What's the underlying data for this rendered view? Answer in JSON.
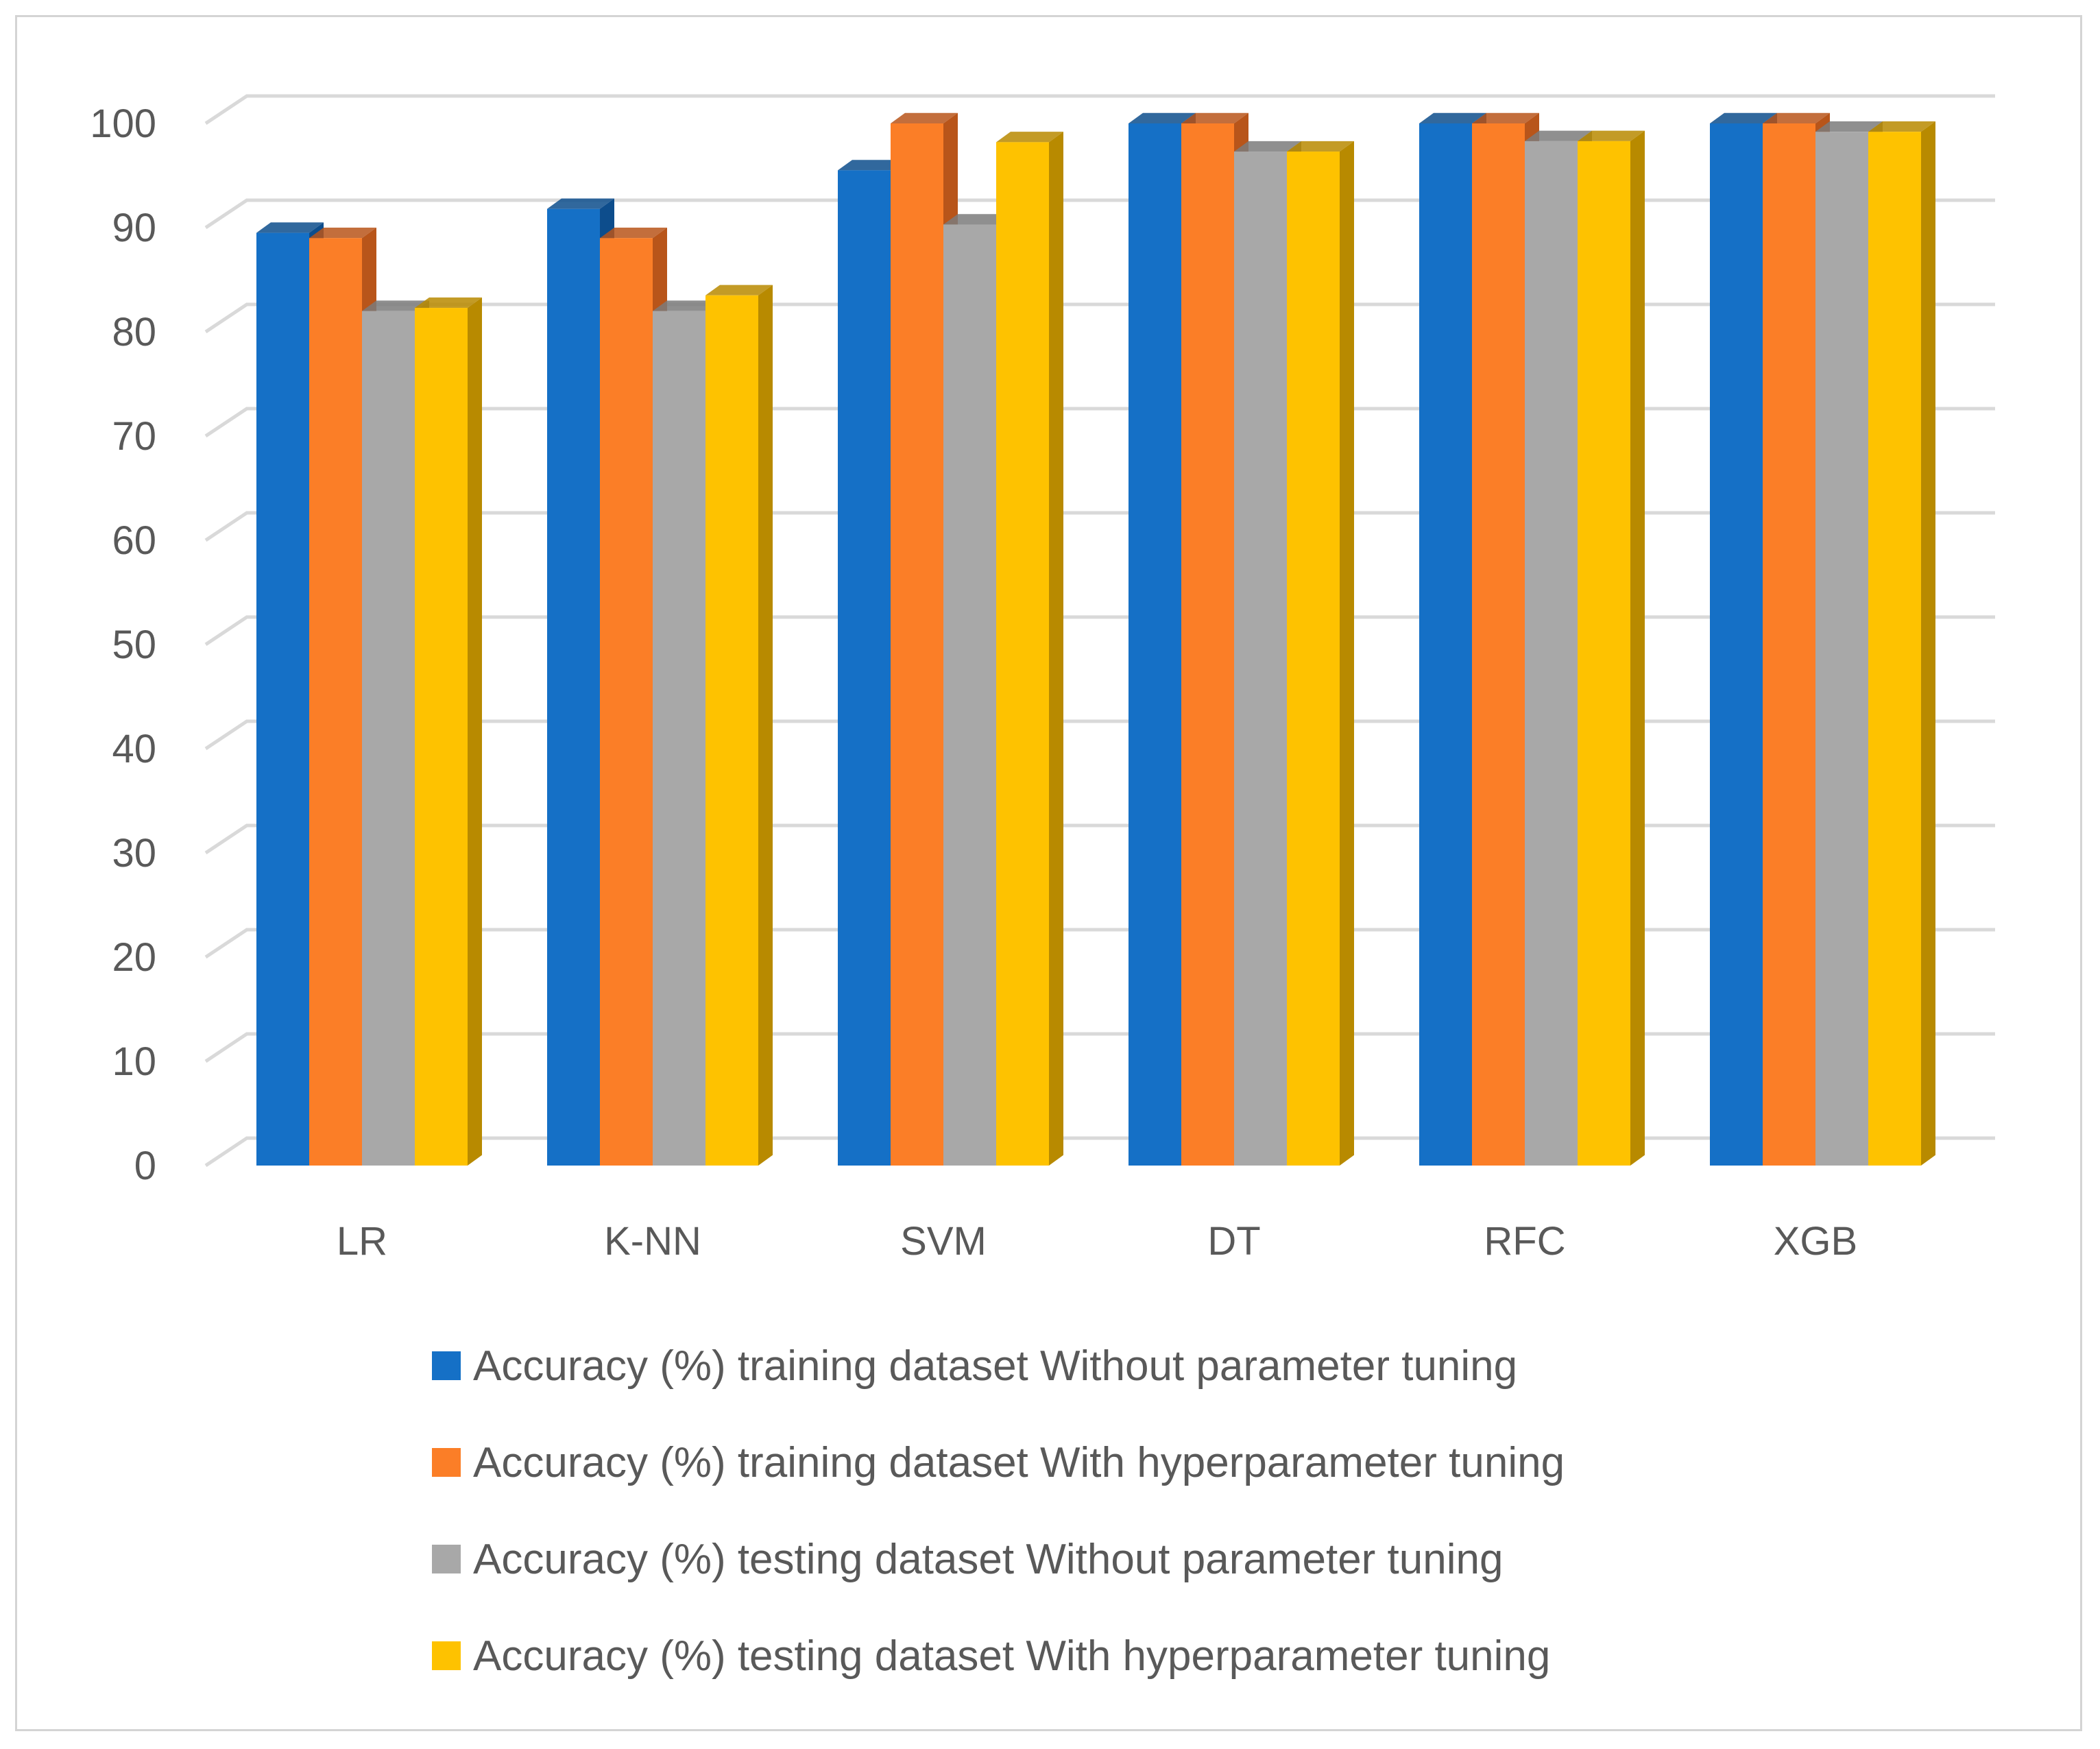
{
  "chart_data": {
    "type": "bar",
    "title": "",
    "xlabel": "",
    "ylabel": "",
    "ylim": [
      0,
      100
    ],
    "yticks": [
      0,
      10,
      20,
      30,
      40,
      50,
      60,
      70,
      80,
      90,
      100
    ],
    "grid": true,
    "legend_position": "bottom",
    "categories": [
      "LR",
      "K-NN",
      "SVM",
      "DT",
      "RFC",
      "XGB"
    ],
    "series": [
      {
        "name": "Accuracy (%) training dataset Without parameter tuning",
        "color": "#1570c6",
        "side_color": "#0d4d8c",
        "values": [
          89.5,
          91.8,
          95.5,
          100,
          100,
          100
        ]
      },
      {
        "name": "Accuracy (%) training dataset With hyperparameter tuning",
        "color": "#fb7e27",
        "side_color": "#b8551a",
        "values": [
          89.0,
          89.0,
          100,
          100,
          100,
          100
        ]
      },
      {
        "name": "Accuracy (%) testing dataset Without parameter tuning",
        "color": "#a8a8a8",
        "side_color": "#7b7b7b",
        "values": [
          82.0,
          82.0,
          90.3,
          97.3,
          98.3,
          99.2
        ]
      },
      {
        "name": "Accuracy (%) testing dataset With hyperparameter tuning",
        "color": "#fec200",
        "side_color": "#b88a00",
        "values": [
          82.3,
          83.5,
          98.2,
          97.3,
          98.3,
          99.2
        ]
      }
    ]
  }
}
